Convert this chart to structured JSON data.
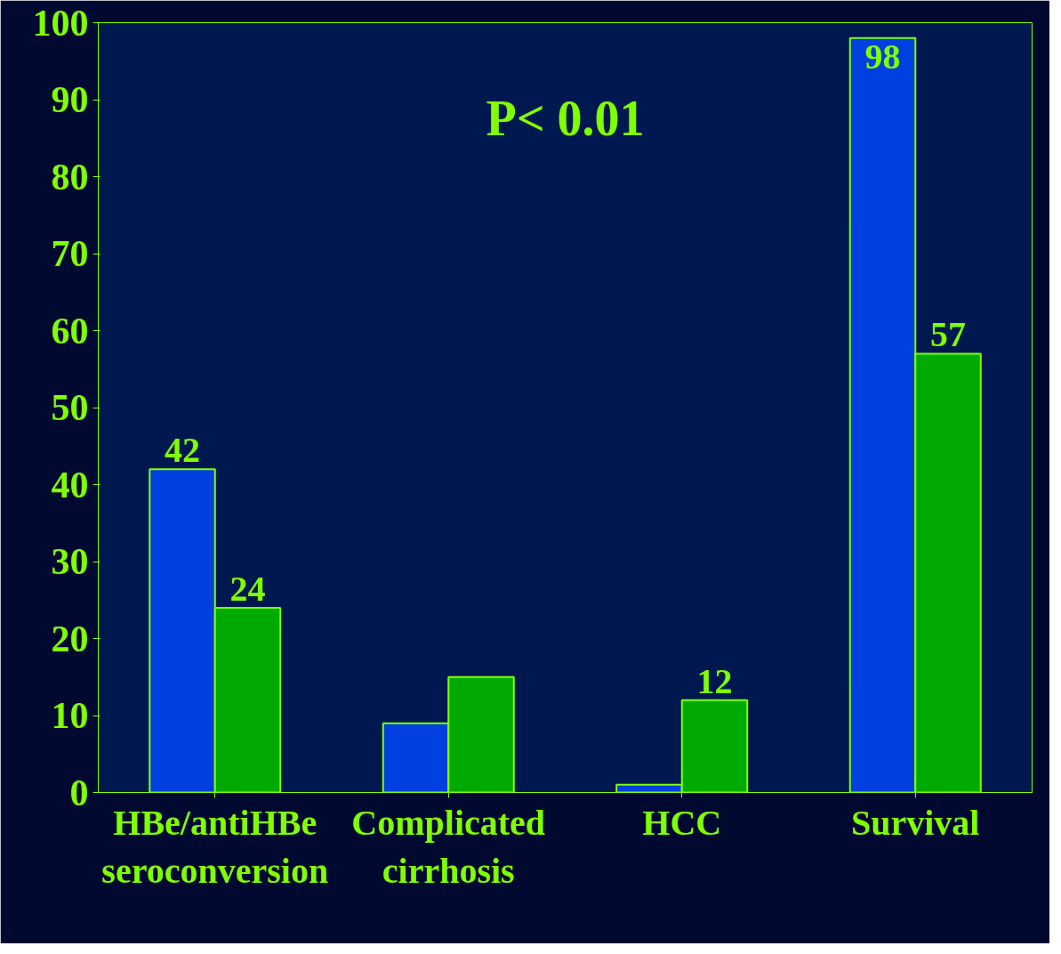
{
  "chart_data": {
    "type": "bar",
    "categories": [
      "HBe/antiHBe\nseroconversion",
      "Complicated\ncirrhosis",
      "HCC",
      "Survival"
    ],
    "series": [
      {
        "color": "#0040e0",
        "values": [
          42,
          9,
          1,
          98
        ],
        "value_labels": [
          "42",
          null,
          null,
          "98"
        ]
      },
      {
        "color": "#00aa00",
        "values": [
          24,
          15,
          12,
          57
        ],
        "value_labels": [
          "24",
          null,
          "12",
          "57"
        ]
      }
    ],
    "ylim": [
      0,
      100
    ],
    "yticks": [
      0,
      10,
      20,
      30,
      40,
      50,
      60,
      70,
      80,
      90,
      100
    ],
    "grid": false,
    "annotations": [
      "P< 0.01"
    ]
  }
}
